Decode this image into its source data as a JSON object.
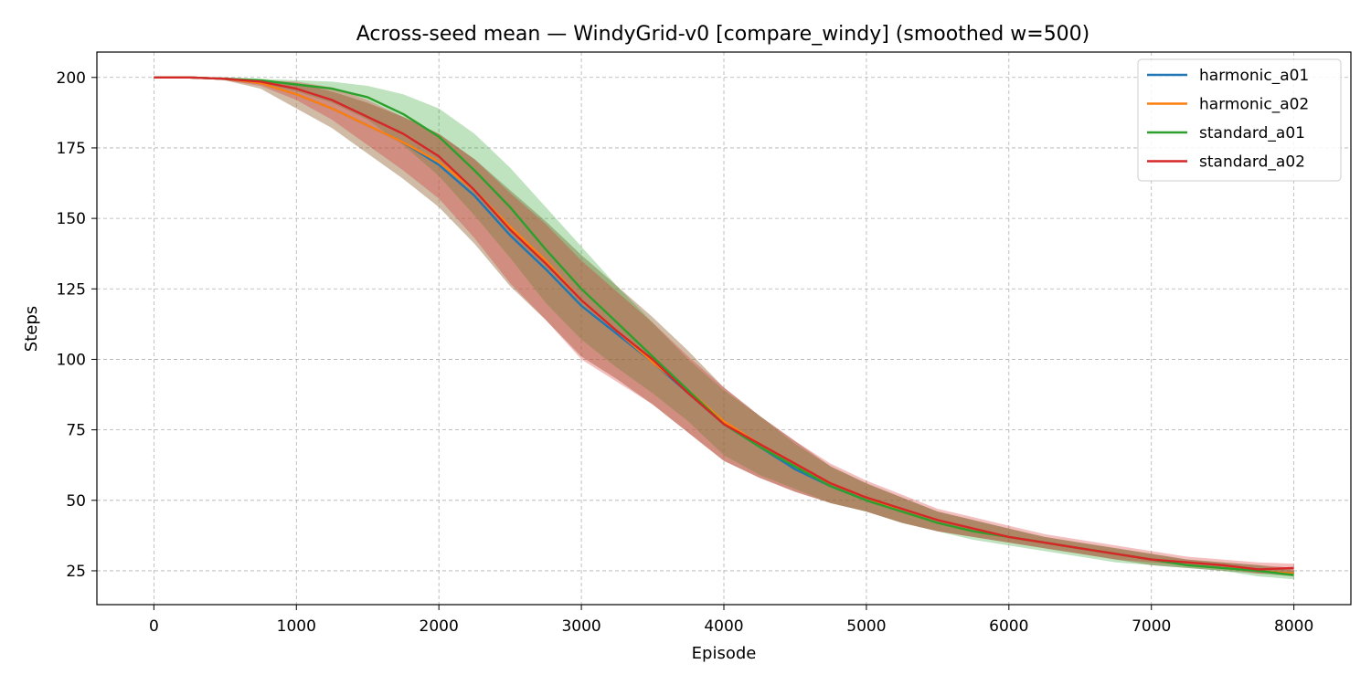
{
  "chart_data": {
    "type": "line",
    "title": "Across-seed mean — WindyGrid-v0 [compare_windy] (smoothed w=500)",
    "xlabel": "Episode",
    "ylabel": "Steps",
    "xlim": [
      -400,
      8400
    ],
    "ylim": [
      13,
      209
    ],
    "xticks": [
      0,
      1000,
      2000,
      3000,
      4000,
      5000,
      6000,
      7000,
      8000
    ],
    "yticks": [
      25,
      50,
      75,
      100,
      125,
      150,
      175,
      200
    ],
    "grid": true,
    "legend_position": "top-right",
    "series": [
      {
        "name": "harmonic_a01",
        "color": "#1f77b4",
        "x": [
          0,
          250,
          500,
          750,
          1000,
          1250,
          1500,
          1750,
          2000,
          2250,
          2500,
          2750,
          3000,
          3250,
          3500,
          3750,
          4000,
          4250,
          4500,
          4750,
          5000,
          5250,
          5500,
          5750,
          6000,
          6250,
          6500,
          6750,
          7000,
          7250,
          7500,
          7750,
          8000
        ],
        "y": [
          200,
          200,
          199.5,
          198,
          194,
          189,
          183,
          177,
          169,
          158,
          144,
          132,
          119,
          109,
          99,
          88,
          77,
          69,
          61,
          55,
          50,
          46,
          42,
          39,
          37,
          35,
          33,
          31,
          29,
          28,
          27,
          25,
          24
        ],
        "upper": [
          200,
          200,
          200,
          199,
          198,
          195,
          191,
          186,
          180,
          171,
          160,
          149,
          137,
          126,
          115,
          103,
          90,
          80,
          71,
          62,
          56,
          51,
          46,
          43,
          40,
          37,
          35,
          33,
          31,
          29,
          28,
          27,
          26
        ],
        "lower": [
          200,
          200,
          199,
          196,
          189,
          182,
          173,
          164,
          154,
          141,
          126,
          114,
          101,
          93,
          84,
          74,
          64,
          58,
          53,
          49,
          46,
          42,
          39,
          37,
          35,
          33,
          31,
          29,
          27,
          26,
          25,
          24,
          23
        ]
      },
      {
        "name": "harmonic_a02",
        "color": "#ff7f0e",
        "x": [
          0,
          250,
          500,
          750,
          1000,
          1250,
          1500,
          1750,
          2000,
          2250,
          2500,
          2750,
          3000,
          3250,
          3500,
          3750,
          4000,
          4250,
          4500,
          4750,
          5000,
          5250,
          5500,
          5750,
          6000,
          6250,
          6500,
          6750,
          7000,
          7250,
          7500,
          7750,
          8000
        ],
        "y": [
          200,
          200,
          199.5,
          198,
          194,
          189,
          183,
          177,
          170,
          160,
          147,
          135,
          121,
          110,
          99,
          89,
          78,
          70,
          63,
          56,
          51,
          46,
          42,
          39,
          37,
          35,
          33,
          31,
          29,
          28,
          27,
          25,
          24
        ],
        "upper": [
          200,
          200,
          200,
          199,
          198,
          195,
          191,
          186,
          180,
          171,
          160,
          149,
          137,
          126,
          115,
          103,
          90,
          80,
          71,
          62,
          56,
          51,
          46,
          43,
          40,
          37,
          35,
          33,
          31,
          29,
          28,
          27,
          26
        ],
        "lower": [
          200,
          200,
          199,
          196,
          189,
          182,
          173,
          164,
          154,
          141,
          126,
          114,
          101,
          93,
          84,
          74,
          64,
          58,
          53,
          49,
          46,
          42,
          39,
          37,
          35,
          33,
          31,
          29,
          27,
          26,
          25,
          24,
          23
        ]
      },
      {
        "name": "standard_a01",
        "color": "#2ca02c",
        "x": [
          0,
          250,
          500,
          750,
          1000,
          1250,
          1500,
          1750,
          2000,
          2250,
          2500,
          2750,
          3000,
          3250,
          3500,
          3750,
          4000,
          4250,
          4500,
          4750,
          5000,
          5250,
          5500,
          5750,
          6000,
          6250,
          6500,
          6750,
          7000,
          7250,
          7500,
          7750,
          8000
        ],
        "y": [
          200,
          200,
          199.5,
          199,
          197.5,
          196,
          193,
          187,
          179,
          167,
          154,
          139,
          125,
          113,
          101,
          89,
          77,
          69,
          62,
          55,
          50,
          46,
          42,
          39,
          37,
          35,
          33,
          31,
          29,
          27,
          26,
          25,
          23.5
        ],
        "upper": [
          200,
          200,
          200,
          199.5,
          199,
          198.5,
          197,
          194,
          189,
          180,
          168,
          154,
          140,
          126,
          113,
          100,
          89,
          80,
          70,
          62,
          56,
          51,
          46,
          43,
          40,
          37,
          35,
          33,
          31,
          29,
          28,
          27,
          25
        ],
        "lower": [
          200,
          200,
          199,
          198,
          195,
          191,
          185,
          176,
          165,
          151,
          136,
          120,
          107,
          97,
          88,
          78,
          66,
          59,
          54,
          49,
          46,
          42,
          39,
          36,
          34,
          32,
          30,
          28,
          27,
          26,
          25,
          23,
          22
        ]
      },
      {
        "name": "standard_a02",
        "color": "#d62728",
        "x": [
          0,
          250,
          500,
          750,
          1000,
          1250,
          1500,
          1750,
          2000,
          2250,
          2500,
          2750,
          3000,
          3250,
          3500,
          3750,
          4000,
          4250,
          4500,
          4750,
          5000,
          5250,
          5500,
          5750,
          6000,
          6250,
          6500,
          6750,
          7000,
          7250,
          7500,
          7750,
          8000
        ],
        "y": [
          200,
          200,
          199.5,
          198.5,
          196,
          192,
          186,
          180,
          172,
          160,
          146,
          134,
          121,
          110,
          100,
          88,
          77,
          70,
          63,
          56,
          51,
          47,
          43,
          40,
          37,
          35,
          33,
          31,
          29,
          28,
          27,
          25.5,
          26
        ],
        "upper": [
          200,
          200,
          200,
          199,
          198.5,
          196.5,
          192,
          186,
          180,
          171,
          159,
          148,
          135,
          124,
          113,
          101,
          90,
          80,
          71,
          63,
          57,
          52,
          47,
          44,
          41,
          38,
          36,
          34,
          32,
          30,
          29,
          28,
          27.5
        ],
        "lower": [
          200,
          200,
          199,
          197,
          192,
          185,
          176,
          167,
          157,
          143,
          127,
          114,
          100,
          92,
          84,
          74,
          64,
          58,
          53,
          49,
          46,
          42,
          39,
          37,
          35,
          33,
          31,
          29,
          28,
          27,
          26,
          24,
          24.5
        ]
      }
    ]
  }
}
